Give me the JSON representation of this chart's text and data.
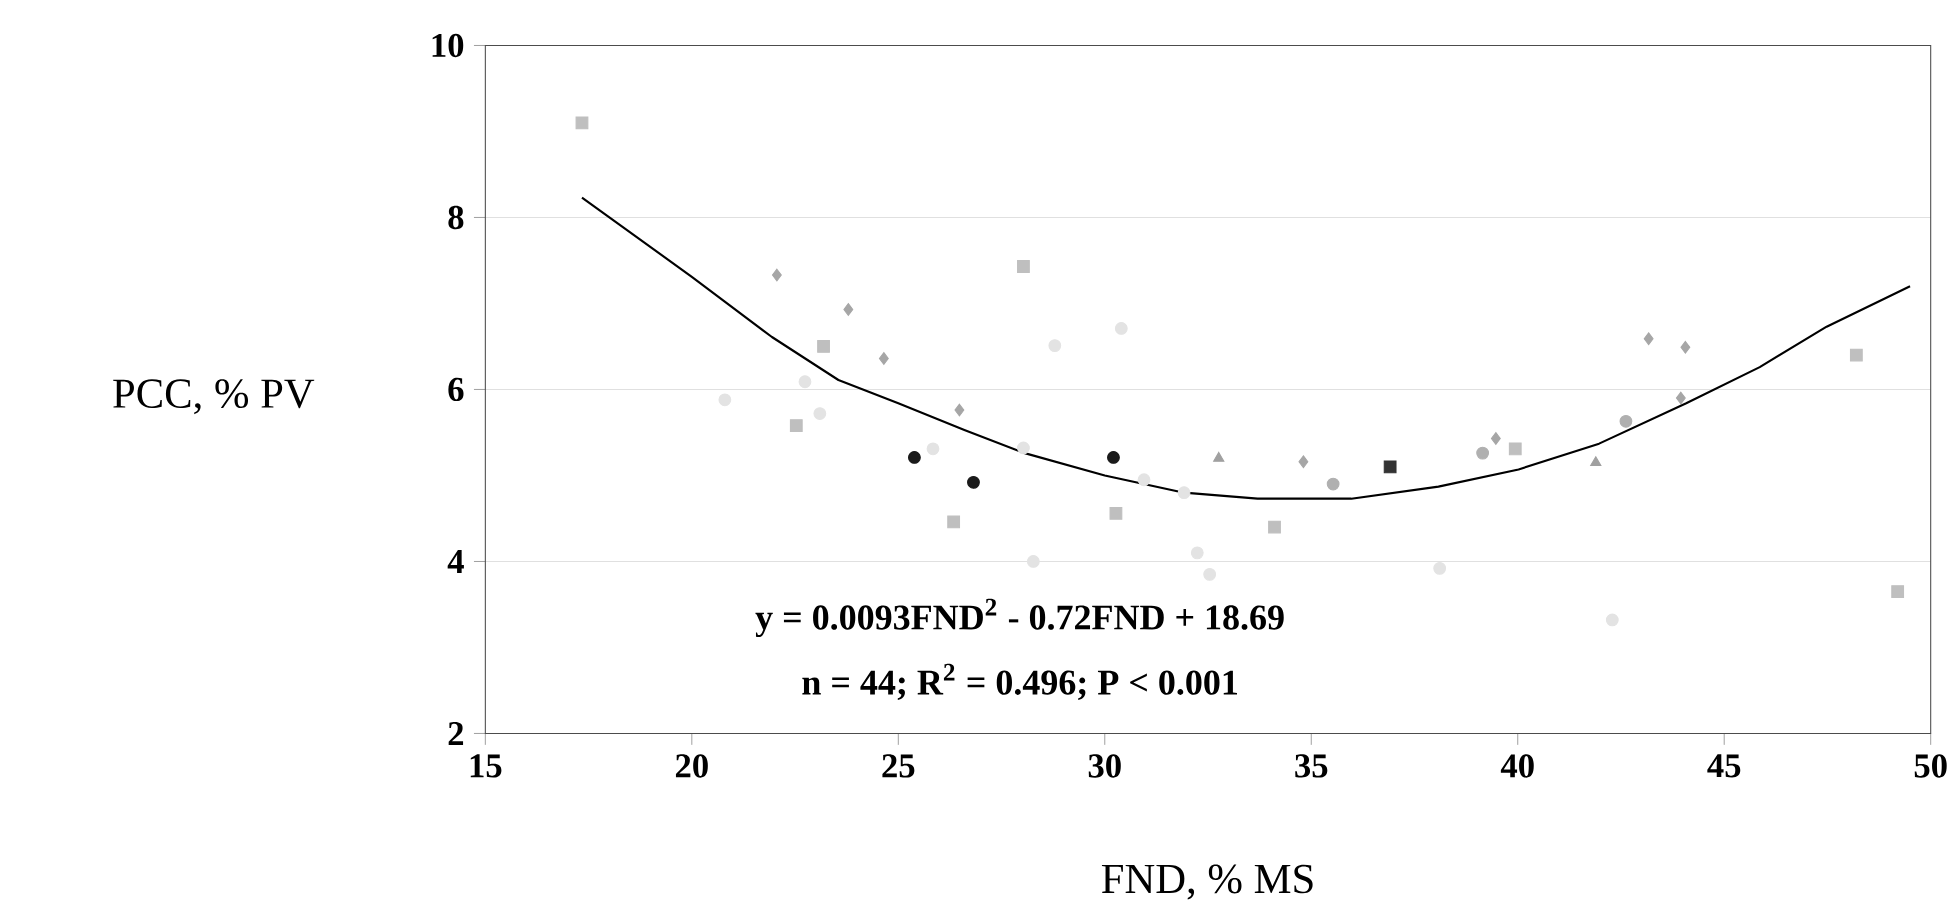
{
  "chart_data": {
    "type": "scatter",
    "xlabel": "FND, % MS",
    "ylabel": "PCC, % PV",
    "xlim": [
      15,
      50
    ],
    "ylim": [
      2,
      10
    ],
    "xticks": [
      15,
      20,
      25,
      30,
      35,
      40,
      45,
      50
    ],
    "yticks": [
      2,
      4,
      6,
      8,
      10
    ],
    "grid": "y",
    "annotations": [
      "y = 0.0093FND$^{2}$ - 0.72FND + 18.69",
      "n = 44; R$^{2}$ = 0.496; P < 0.001"
    ],
    "series": [
      {
        "marker": "square",
        "color": "#bfbfbf",
        "x": [
          17.34,
          23.19,
          22.53,
          26.34,
          28.03,
          30.27,
          34.11,
          39.94,
          48.2,
          49.2
        ],
        "values": [
          9.1,
          6.5,
          5.58,
          4.46,
          7.43,
          4.56,
          4.4,
          5.31,
          6.4,
          3.65
        ]
      },
      {
        "marker": "diamond",
        "color": "#a6a6a6",
        "x": [
          22.06,
          23.79,
          24.65,
          26.48,
          34.81,
          39.47,
          43.17,
          44.06,
          43.95
        ],
        "values": [
          7.33,
          6.93,
          6.36,
          5.76,
          5.16,
          5.43,
          6.59,
          6.49,
          5.9
        ]
      },
      {
        "marker": "circle",
        "color": "#1a1a1a",
        "x": [
          25.39,
          26.82,
          30.21
        ],
        "values": [
          5.21,
          4.92,
          5.21
        ]
      },
      {
        "marker": "square",
        "color": "#333333",
        "x": [
          36.91
        ],
        "values": [
          5.1
        ]
      },
      {
        "marker": "circle",
        "color": "#e3e3e3",
        "x": [
          20.8,
          22.74,
          23.1,
          25.84,
          28.03,
          28.27,
          28.79,
          30.4,
          30.95,
          31.92,
          32.24,
          32.54,
          38.11,
          42.29
        ],
        "values": [
          5.88,
          6.09,
          5.72,
          5.31,
          5.32,
          4.0,
          6.51,
          6.71,
          4.95,
          4.8,
          4.1,
          3.85,
          3.92,
          3.32
        ]
      },
      {
        "marker": "circle",
        "color": "#b0b0b0",
        "x": [
          35.53,
          39.15,
          42.62
        ],
        "values": [
          4.9,
          5.26,
          5.63
        ]
      },
      {
        "marker": "triangle",
        "color": "#a0a0a0",
        "x": [
          32.76,
          41.89
        ],
        "values": [
          5.2,
          5.15
        ]
      },
      {
        "type": "line",
        "marker": "none",
        "color": "#000000",
        "x": [
          17.34,
          20,
          21.94,
          23.55,
          25,
          26.6,
          28.06,
          30,
          31.92,
          33.7,
          35.97,
          38.08,
          40.02,
          41.97,
          44.08,
          45.86,
          47.48,
          49.5
        ],
        "values": [
          8.23,
          7.31,
          6.61,
          6.11,
          5.84,
          5.53,
          5.26,
          5.0,
          4.8,
          4.73,
          4.73,
          4.87,
          5.07,
          5.37,
          5.84,
          6.26,
          6.73,
          7.2
        ]
      }
    ]
  }
}
